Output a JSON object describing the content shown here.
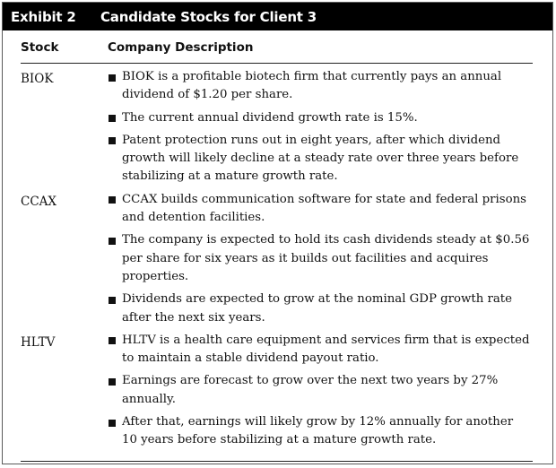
{
  "exhibit": {
    "label": "Exhibit 2",
    "title": "Candidate Stocks for Client 3"
  },
  "columns": {
    "stock": "Stock",
    "description": "Company Description"
  },
  "rows": [
    {
      "ticker": "BIOK",
      "bullets": [
        "BIOK is a profitable biotech firm that currently pays an annual dividend of $1.20 per share.",
        "The current annual dividend growth rate is 15%.",
        "Patent protection runs out in eight years, after which dividend growth will likely decline at a steady rate over three years before stabilizing at a mature growth rate."
      ]
    },
    {
      "ticker": "CCAX",
      "bullets": [
        "CCAX builds communication software for state and federal prisons and detention facilities.",
        "The company is expected to hold its cash dividends steady at $0.56 per share for six years as it builds out facilities and acquires properties.",
        "Dividends are expected to grow at the nominal GDP growth rate after the next six years."
      ]
    },
    {
      "ticker": "HLTV",
      "bullets": [
        "HLTV is a health care equipment and services firm that is expected to maintain a stable dividend payout ratio.",
        "Earnings are forecast to grow over the next two years by 27% annually.",
        "After that, earnings will likely grow by 12% annually for another 10 years before stabilizing at a mature growth rate."
      ]
    }
  ]
}
